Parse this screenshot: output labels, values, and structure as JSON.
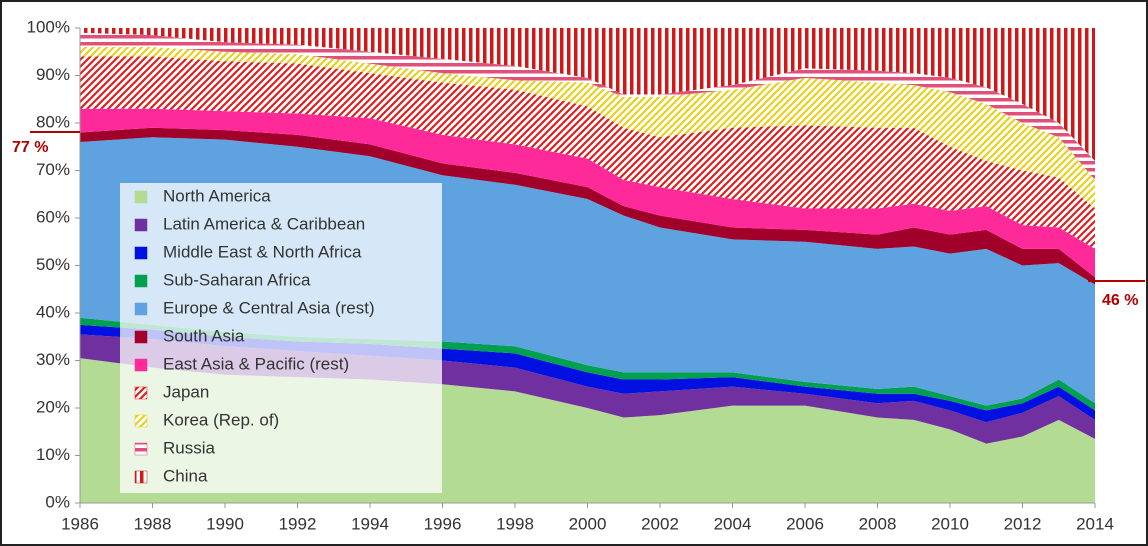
{
  "chart_data": {
    "type": "stacked_area",
    "x": [
      1986,
      1988,
      1990,
      1992,
      1994,
      1996,
      1998,
      2000,
      2001,
      2002,
      2004,
      2006,
      2008,
      2009,
      2010,
      2011,
      2012,
      2013,
      2014
    ],
    "xlim": [
      1986,
      2014
    ],
    "xticks": [
      1986,
      1988,
      1990,
      1992,
      1994,
      1996,
      1998,
      2000,
      2002,
      2004,
      2006,
      2008,
      2010,
      2012,
      2014
    ],
    "ylim": [
      0,
      100
    ],
    "yticks": [
      {
        "value": 0,
        "label": "0%"
      },
      {
        "value": 10,
        "label": "10%"
      },
      {
        "value": 20,
        "label": "20%"
      },
      {
        "value": 30,
        "label": "30%"
      },
      {
        "value": 40,
        "label": "40%"
      },
      {
        "value": 50,
        "label": "50%"
      },
      {
        "value": 60,
        "label": "60%"
      },
      {
        "value": 70,
        "label": "70%"
      },
      {
        "value": 80,
        "label": "80%"
      },
      {
        "value": 90,
        "label": "90%"
      },
      {
        "value": 100,
        "label": "100%"
      }
    ],
    "legend": "left",
    "annotations": [
      "77 %",
      "46 %"
    ],
    "series": [
      {
        "name": "North America",
        "color": "#b3db93",
        "values": [
          30.5,
          28.5,
          27,
          26.5,
          26,
          25,
          23.5,
          20,
          18,
          18.5,
          20.5,
          20.5,
          18,
          17.5,
          15.5,
          12.5,
          14,
          17.5,
          13.5
        ]
      },
      {
        "name": "Latin America & Caribbean",
        "color": "#7030a0",
        "values": [
          5,
          6,
          6,
          5.5,
          5,
          5,
          5,
          4.5,
          5,
          5,
          4,
          2.5,
          3,
          4,
          4,
          4.5,
          5,
          5,
          4
        ]
      },
      {
        "name": "Middle East & North Africa",
        "color": "#0010e0",
        "values": [
          2,
          2,
          2,
          2,
          2.5,
          2.5,
          3,
          3,
          3,
          2.5,
          2,
          1.5,
          2,
          1.5,
          2,
          2.5,
          2,
          2,
          2
        ]
      },
      {
        "name": "Sub-Saharan Africa",
        "color": "#00a050",
        "values": [
          1.5,
          1,
          1,
          1,
          1,
          1.5,
          1.5,
          1.5,
          1.5,
          1.5,
          1,
          1,
          1,
          1.5,
          1,
          1,
          1,
          1.5,
          1.5
        ]
      },
      {
        "name": "Europe & Central Asia (rest)",
        "color": "#5ea3e0",
        "values": [
          37,
          39.5,
          40.5,
          40,
          38.5,
          35,
          34,
          35,
          33,
          30.5,
          28,
          29.5,
          29.5,
          29.5,
          30,
          33,
          28,
          24.5,
          25
        ]
      },
      {
        "name": "South Asia",
        "color": "#a0002a",
        "values": [
          2,
          2,
          2,
          2.5,
          2.5,
          2.5,
          2.5,
          2.5,
          2,
          2.5,
          2.5,
          2.5,
          3,
          4,
          4,
          4,
          3.5,
          3,
          1.5
        ]
      },
      {
        "name": "East Asia & Pacific (rest)",
        "color": "#ff2a9a",
        "values": [
          5,
          4,
          4,
          4.5,
          5.5,
          6,
          6,
          6,
          5.5,
          6,
          6,
          4.5,
          5.5,
          5,
          5,
          5,
          5,
          4.5,
          6
        ]
      },
      {
        "name": "Japan",
        "color": "#e02020",
        "hatch": "diagonal",
        "values": [
          11,
          11,
          10.5,
          10.5,
          9.5,
          11,
          11.5,
          11,
          11,
          10.5,
          15,
          17.5,
          17,
          16,
          13.5,
          9.5,
          11.5,
          10.5,
          8.5
        ]
      },
      {
        "name": "Korea (Rep. of)",
        "color": "#e8d020",
        "hatch": "diagonal",
        "values": [
          2,
          2,
          2,
          2,
          2,
          2,
          2,
          5,
          6.5,
          8.5,
          8,
          10,
          9.5,
          9,
          11.5,
          12,
          10,
          8.5,
          6
        ]
      },
      {
        "name": "Russia",
        "color": "#e0507a",
        "hatch": "horizontal",
        "values": [
          3,
          2.5,
          2,
          2,
          2.5,
          3,
          3,
          1,
          0.5,
          0.5,
          1,
          2,
          2.5,
          2.5,
          3,
          3.5,
          4,
          3,
          4
        ]
      },
      {
        "name": "China",
        "color": "#d01818",
        "hatch": "vertical",
        "values": [
          1,
          1.5,
          3,
          3.5,
          5,
          6.5,
          8,
          10.5,
          14,
          14,
          12,
          8.5,
          9,
          9.5,
          10.5,
          12.5,
          16,
          20,
          28
        ]
      }
    ]
  }
}
